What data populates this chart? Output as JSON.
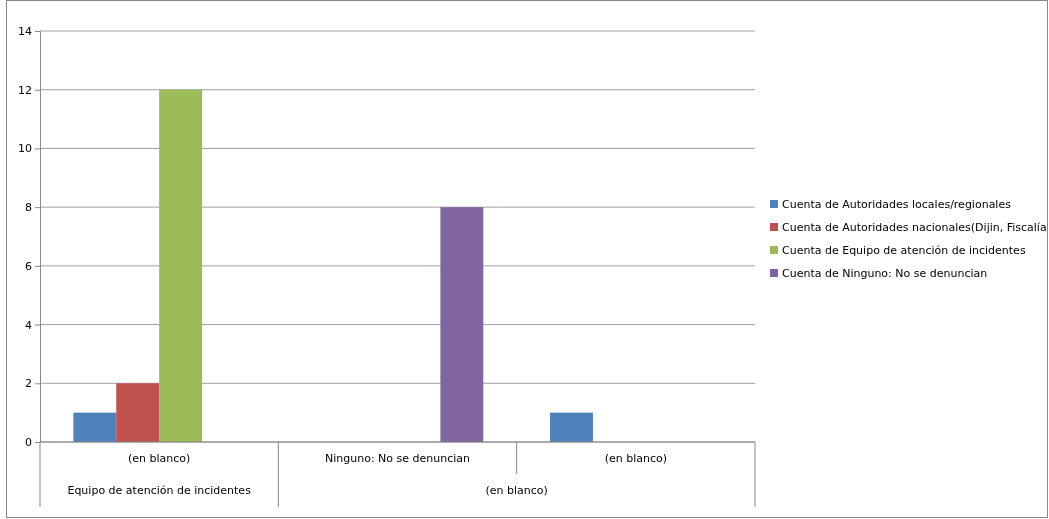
{
  "chart_data": {
    "type": "bar",
    "categories": [
      "(en blanco)",
      "Ninguno: No se denuncian",
      "(en blanco)"
    ],
    "series": [
      {
        "name": "Cuenta de Autoridades locales/regionales",
        "color": "#4f81bd",
        "values": [
          1,
          null,
          1
        ]
      },
      {
        "name": "Cuenta de Autoridades nacionales(Dijin, Fiscalía",
        "color": "#c0504d",
        "values": [
          2,
          null,
          null
        ]
      },
      {
        "name": "Cuenta de Equipo de atención de incidentes",
        "color": "#9bbb59",
        "values": [
          12,
          null,
          null
        ]
      },
      {
        "name": "Cuenta de Ninguno: No se denuncian",
        "color": "#8064a2",
        "values": [
          null,
          8,
          null
        ]
      }
    ],
    "ylim": [
      0,
      14
    ],
    "yticks": [
      0,
      2,
      4,
      6,
      8,
      10,
      12,
      14
    ],
    "grid": "y",
    "legend": "right",
    "annotations": [
      "Equipo de atención de incidentes",
      "(en blanco)"
    ]
  }
}
